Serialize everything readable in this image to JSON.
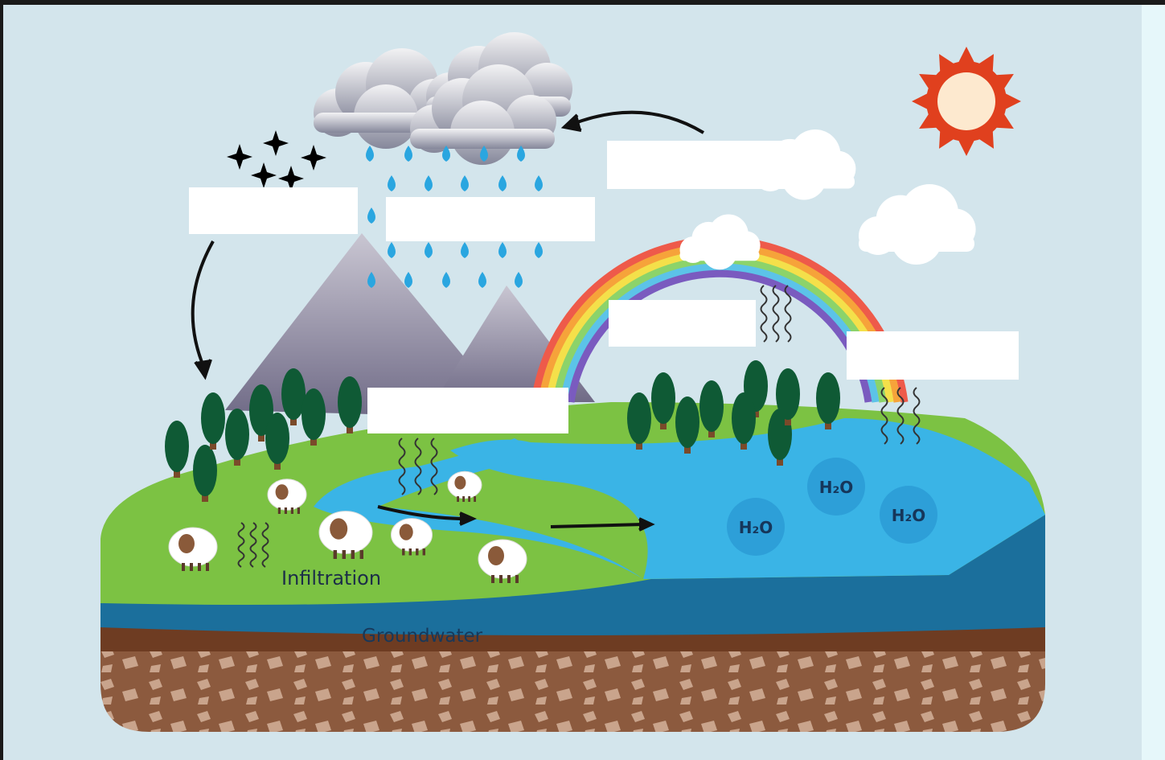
{
  "labels": {
    "infiltration": "Infiltration",
    "groundwater": "Groundwater"
  },
  "molecules": [
    "H₂O",
    "H₂O",
    "H₂O"
  ]
}
